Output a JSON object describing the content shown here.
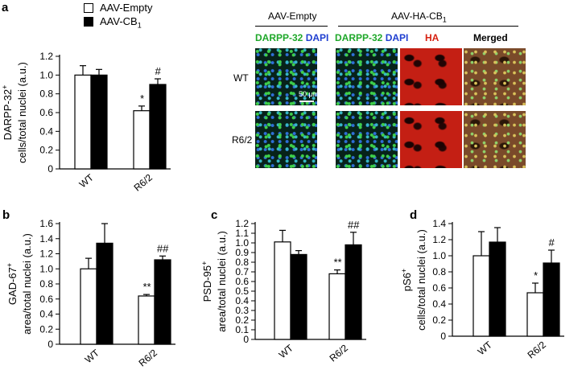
{
  "figure": {
    "micro": {
      "group_empty": "AAV-Empty",
      "group_ha": "AAV-HA-CB",
      "group_ha_sub": "1",
      "col_darpp": "DARPP-32",
      "col_dapi": "DAPI",
      "col_ha": "HA",
      "col_merged": "Merged",
      "row_wt": "WT",
      "row_r62": "R6/2",
      "scale_bar": "50 μm"
    }
  },
  "legend": {
    "empty": "AAV-Empty",
    "cb1": "AAV-CB",
    "cb1_sub": "1"
  },
  "colors": {
    "empty_fill": "#ffffff",
    "cb1_fill": "#000000",
    "darpp_text": "#1fa82a",
    "dapi_text": "#1f3fd0",
    "ha_text": "#d62010"
  },
  "chart_data": [
    {
      "panel": "a",
      "type": "bar",
      "categories": [
        "WT",
        "R6/2"
      ],
      "series": [
        {
          "name": "AAV-Empty",
          "values": [
            1.0,
            0.62
          ],
          "errors": [
            0.1,
            0.05
          ]
        },
        {
          "name": "AAV-CB1",
          "values": [
            1.0,
            0.9
          ],
          "errors": [
            0.06,
            0.06
          ]
        }
      ],
      "significance": [
        {
          "category": 1,
          "series": 0,
          "label": "*"
        },
        {
          "category": 1,
          "series": 1,
          "label": "#"
        }
      ],
      "ylabel_lines": [
        "DARPP-32",
        "cells/total nuclei (a.u.)"
      ],
      "ylabel_sup": "+",
      "ylim": [
        0,
        1.2
      ],
      "yticks": [
        "0",
        "0.2",
        "0.4",
        "0.6",
        "0.8",
        "1.0",
        "1.2"
      ]
    },
    {
      "panel": "b",
      "type": "bar",
      "categories": [
        "WT",
        "R6/2"
      ],
      "series": [
        {
          "name": "AAV-Empty",
          "values": [
            1.0,
            0.64
          ],
          "errors": [
            0.14,
            0.02
          ]
        },
        {
          "name": "AAV-CB1",
          "values": [
            1.34,
            1.12
          ],
          "errors": [
            0.26,
            0.05
          ]
        }
      ],
      "significance": [
        {
          "category": 1,
          "series": 0,
          "label": "**"
        },
        {
          "category": 1,
          "series": 1,
          "label": "##"
        }
      ],
      "ylabel_lines": [
        "GAD-67",
        "area/total nuclei (a.u.)"
      ],
      "ylabel_sup": "+",
      "ylim": [
        0,
        1.6
      ],
      "yticks": [
        "0",
        "0.2",
        "0.4",
        "0.6",
        "0.8",
        "1.0",
        "1.2",
        "1.4",
        "1.6"
      ]
    },
    {
      "panel": "c",
      "type": "bar",
      "categories": [
        "WT",
        "R6/2"
      ],
      "series": [
        {
          "name": "AAV-Empty",
          "values": [
            1.01,
            0.68
          ],
          "errors": [
            0.12,
            0.04
          ]
        },
        {
          "name": "AAV-CB1",
          "values": [
            0.88,
            0.98
          ],
          "errors": [
            0.04,
            0.13
          ]
        }
      ],
      "significance": [
        {
          "category": 1,
          "series": 0,
          "label": "**"
        },
        {
          "category": 1,
          "series": 1,
          "label": "##"
        }
      ],
      "ylabel_lines": [
        "PSD-95",
        "area/total nuclei (a.u.)"
      ],
      "ylabel_sup": "+",
      "ylim": [
        0,
        1.2
      ],
      "yticks": [
        "0",
        "0.1",
        "0.2",
        "0.3",
        "0.4",
        "0.5",
        "0.6",
        "0.7",
        "0.8",
        "0.9",
        "1.0",
        "1.1",
        "1.2"
      ]
    },
    {
      "panel": "d",
      "type": "bar",
      "categories": [
        "WT",
        "R6/2"
      ],
      "series": [
        {
          "name": "AAV-Empty",
          "values": [
            1.0,
            0.54
          ],
          "errors": [
            0.3,
            0.12
          ]
        },
        {
          "name": "AAV-CB1",
          "values": [
            1.17,
            0.91
          ],
          "errors": [
            0.18,
            0.16
          ]
        }
      ],
      "significance": [
        {
          "category": 1,
          "series": 0,
          "label": "*"
        },
        {
          "category": 1,
          "series": 1,
          "label": "#"
        }
      ],
      "ylabel_lines": [
        "pS6",
        "cells/total nuclei (a.u.)"
      ],
      "ylabel_sup": "+",
      "ylim": [
        0,
        1.4
      ],
      "yticks": [
        "0",
        "0.2",
        "0.4",
        "0.6",
        "0.8",
        "1.0",
        "1.2",
        "1.4"
      ]
    }
  ]
}
